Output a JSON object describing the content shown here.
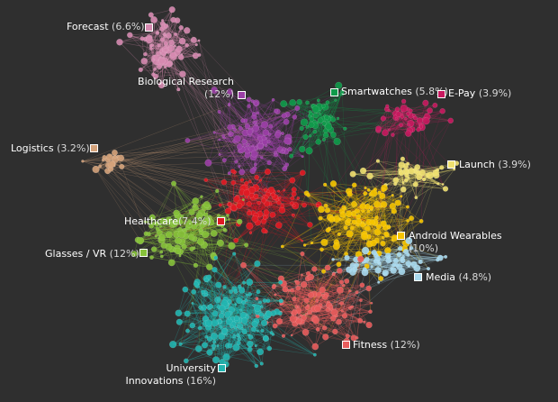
{
  "clusters": [
    {
      "key": "forecast",
      "name": "Forecast",
      "pct": "(6.6%)",
      "color": "#d68ab0"
    },
    {
      "key": "bio",
      "name": "Biological Research",
      "pct": "(12%)",
      "color": "#9b3fa6"
    },
    {
      "key": "smart",
      "name": "Smartwatches",
      "pct": "(5.8%)",
      "color": "#0f9a4a"
    },
    {
      "key": "epay",
      "name": "E-Pay",
      "pct": "(3.9%)",
      "color": "#c8195f"
    },
    {
      "key": "logistics",
      "name": "Logistics",
      "pct": "(3.2%)",
      "color": "#d4a27a"
    },
    {
      "key": "launch",
      "name": "Launch",
      "pct": "(3.9%)",
      "color": "#efe070"
    },
    {
      "key": "health",
      "name": "Healthcare",
      "pct": "(7.4%)",
      "color": "#e01b24"
    },
    {
      "key": "android",
      "name": "Android Wearables",
      "pct": "(10%)",
      "color": "#f5c400"
    },
    {
      "key": "glasses",
      "name": "Glasses / VR",
      "pct": "(12%)",
      "color": "#86c13a"
    },
    {
      "key": "media",
      "name": "Media",
      "pct": "(4.8%)",
      "color": "#a9d9ee"
    },
    {
      "key": "fitness",
      "name": "Fitness",
      "pct": "(12%)",
      "color": "#e85c5c"
    },
    {
      "key": "univ",
      "name": "University Innovations",
      "line1": "University",
      "line2": "Innovations",
      "pct": "(16%)",
      "color": "#22b5b0"
    }
  ]
}
